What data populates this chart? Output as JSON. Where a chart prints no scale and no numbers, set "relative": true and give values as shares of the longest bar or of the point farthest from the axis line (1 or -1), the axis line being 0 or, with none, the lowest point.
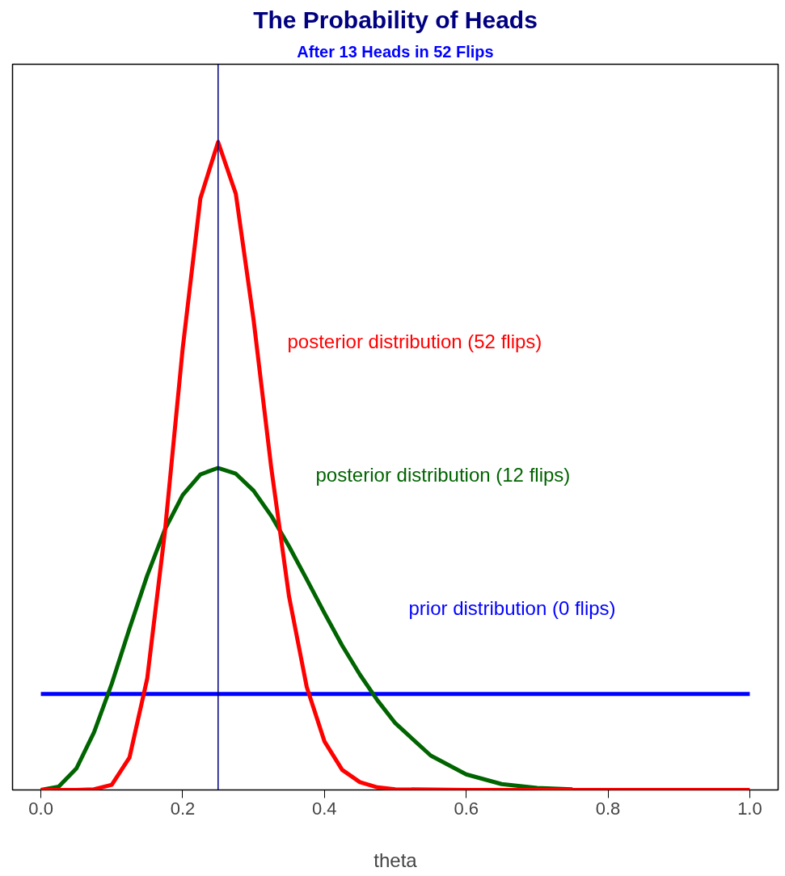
{
  "chart_data": {
    "type": "line",
    "title": "The Probability of Heads",
    "subtitle": "After 13 Heads in 52 Flips",
    "xlabel": "theta",
    "relative": true,
    "grid": false,
    "marker": "none",
    "line_style": "solid",
    "xlim": [
      -0.04,
      1.04
    ],
    "xticks": [
      {
        "value": 0,
        "label": "0.0"
      },
      0.2,
      0.4,
      0.6,
      0.8,
      {
        "value": 1,
        "label": "1.0"
      }
    ],
    "series": [
      {
        "color": "#0000ff",
        "x": [
          0,
          1
        ],
        "values": [
          0.148,
          0.148
        ]
      },
      {
        "color": "#006400",
        "x": [
          0,
          0.025,
          0.05,
          0.075,
          0.1,
          0.125,
          0.15,
          0.175,
          0.2,
          0.225,
          0.25,
          0.275,
          0.3,
          0.325,
          0.35,
          0.375,
          0.4,
          0.425,
          0.45,
          0.475,
          0.5,
          0.55,
          0.6,
          0.65,
          0.7,
          0.75
        ],
        "values": [
          0,
          0.005,
          0.033,
          0.089,
          0.164,
          0.249,
          0.331,
          0.402,
          0.455,
          0.487,
          0.497,
          0.488,
          0.462,
          0.423,
          0.376,
          0.325,
          0.273,
          0.223,
          0.178,
          0.138,
          0.103,
          0.053,
          0.024,
          0.009,
          0.003,
          0.001
        ]
      },
      {
        "color": "#ff0000",
        "x": [
          0,
          0.05,
          0.075,
          0.1,
          0.125,
          0.15,
          0.175,
          0.2,
          0.225,
          0.25,
          0.275,
          0.3,
          0.325,
          0.35,
          0.375,
          0.4,
          0.425,
          0.45,
          0.475,
          0.5,
          0.6,
          0.8,
          1.0
        ],
        "values": [
          0,
          0,
          0.001,
          0.008,
          0.05,
          0.172,
          0.399,
          0.681,
          0.913,
          1,
          0.92,
          0.726,
          0.497,
          0.299,
          0.159,
          0.075,
          0.031,
          0.012,
          0.004,
          0.001,
          0,
          0,
          0
        ]
      }
    ],
    "ref_lines": [
      {
        "axis": "x",
        "value": 0.25,
        "color": "#000080"
      }
    ],
    "annotations": [
      "prior distribution (0 flips)",
      "posterior distribution (12 flips)",
      "posterior distribution (52 flips)"
    ]
  }
}
